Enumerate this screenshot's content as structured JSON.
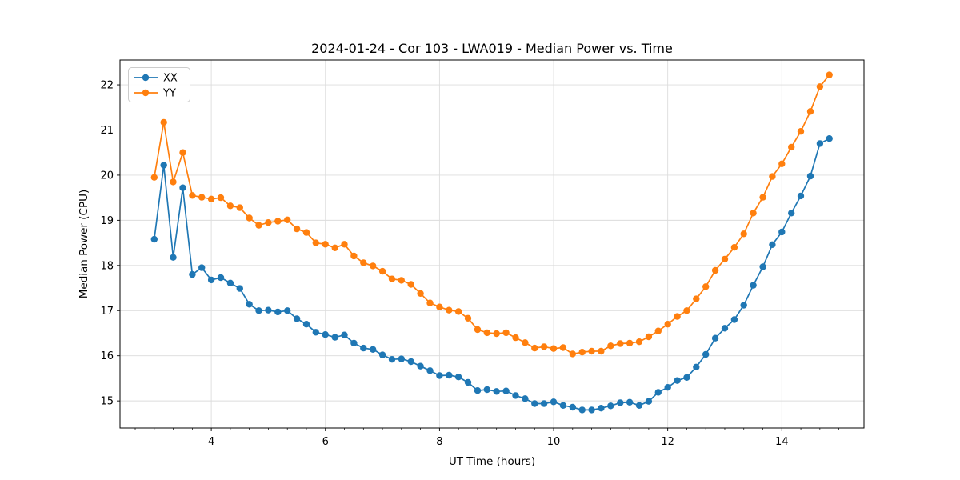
{
  "figure": {
    "background": "#ffffff",
    "spine_color": "#000000",
    "grid_color": "#dcdcdc"
  },
  "chart_data": {
    "type": "line",
    "title": "2024-01-24 - Cor 103 - LWA019 - Median Power vs. Time",
    "xlabel": "UT Time (hours)",
    "ylabel": "Median Power (CPU)",
    "xlim": [
      2.4,
      15.44
    ],
    "ylim": [
      14.4,
      22.55
    ],
    "x_major_ticks": [
      4,
      6,
      8,
      10,
      12,
      14
    ],
    "x_minor_tick_step": 0.33333,
    "y_major_ticks": [
      15,
      16,
      17,
      18,
      19,
      20,
      21,
      22
    ],
    "grid": true,
    "legend_position": "upper-left",
    "x": [
      3.0,
      3.167,
      3.333,
      3.5,
      3.667,
      3.833,
      4.0,
      4.167,
      4.333,
      4.5,
      4.667,
      4.833,
      5.0,
      5.167,
      5.333,
      5.5,
      5.667,
      5.833,
      6.0,
      6.167,
      6.333,
      6.5,
      6.667,
      6.833,
      7.0,
      7.167,
      7.333,
      7.5,
      7.667,
      7.833,
      8.0,
      8.167,
      8.333,
      8.5,
      8.667,
      8.833,
      9.0,
      9.167,
      9.333,
      9.5,
      9.667,
      9.833,
      10.0,
      10.167,
      10.333,
      10.5,
      10.667,
      10.833,
      11.0,
      11.167,
      11.333,
      11.5,
      11.667,
      11.833,
      12.0,
      12.167,
      12.333,
      12.5,
      12.667,
      12.833,
      13.0,
      13.167,
      13.333,
      13.5,
      13.667,
      13.833,
      14.0,
      14.167,
      14.333,
      14.5,
      14.667,
      14.833
    ],
    "series": [
      {
        "name": "XX",
        "color": "#1f77b4",
        "values": [
          18.58,
          20.22,
          18.18,
          19.72,
          17.8,
          17.95,
          17.68,
          17.73,
          17.61,
          17.49,
          17.14,
          17.0,
          17.01,
          16.97,
          17.0,
          16.82,
          16.7,
          16.52,
          16.47,
          16.41,
          16.46,
          16.28,
          16.17,
          16.14,
          16.02,
          15.92,
          15.93,
          15.87,
          15.77,
          15.67,
          15.56,
          15.57,
          15.53,
          15.41,
          15.23,
          15.25,
          15.21,
          15.22,
          15.12,
          15.05,
          14.94,
          14.94,
          14.98,
          14.9,
          14.86,
          14.8,
          14.8,
          14.84,
          14.89,
          14.96,
          14.97,
          14.9,
          14.99,
          15.19,
          15.3,
          15.45,
          15.52,
          15.75,
          16.03,
          16.39,
          16.61,
          16.8,
          17.12,
          17.56,
          17.97,
          18.46,
          18.74,
          19.16,
          19.54,
          19.98,
          20.7,
          20.81
        ]
      },
      {
        "name": "YY",
        "color": "#ff7f0e",
        "values": [
          19.95,
          21.17,
          19.85,
          20.5,
          19.55,
          19.51,
          19.47,
          19.5,
          19.32,
          19.28,
          19.05,
          18.89,
          18.95,
          18.98,
          19.01,
          18.81,
          18.73,
          18.5,
          18.47,
          18.39,
          18.47,
          18.21,
          18.06,
          17.99,
          17.87,
          17.7,
          17.67,
          17.58,
          17.38,
          17.17,
          17.08,
          17.01,
          16.98,
          16.83,
          16.58,
          16.51,
          16.49,
          16.51,
          16.4,
          16.29,
          16.17,
          16.2,
          16.16,
          16.18,
          16.04,
          16.08,
          16.1,
          16.1,
          16.22,
          16.27,
          16.28,
          16.31,
          16.42,
          16.55,
          16.7,
          16.87,
          17.0,
          17.26,
          17.53,
          17.89,
          18.14,
          18.4,
          18.7,
          19.16,
          19.51,
          19.97,
          20.25,
          20.62,
          20.97,
          21.41,
          21.96,
          22.22
        ]
      }
    ]
  }
}
